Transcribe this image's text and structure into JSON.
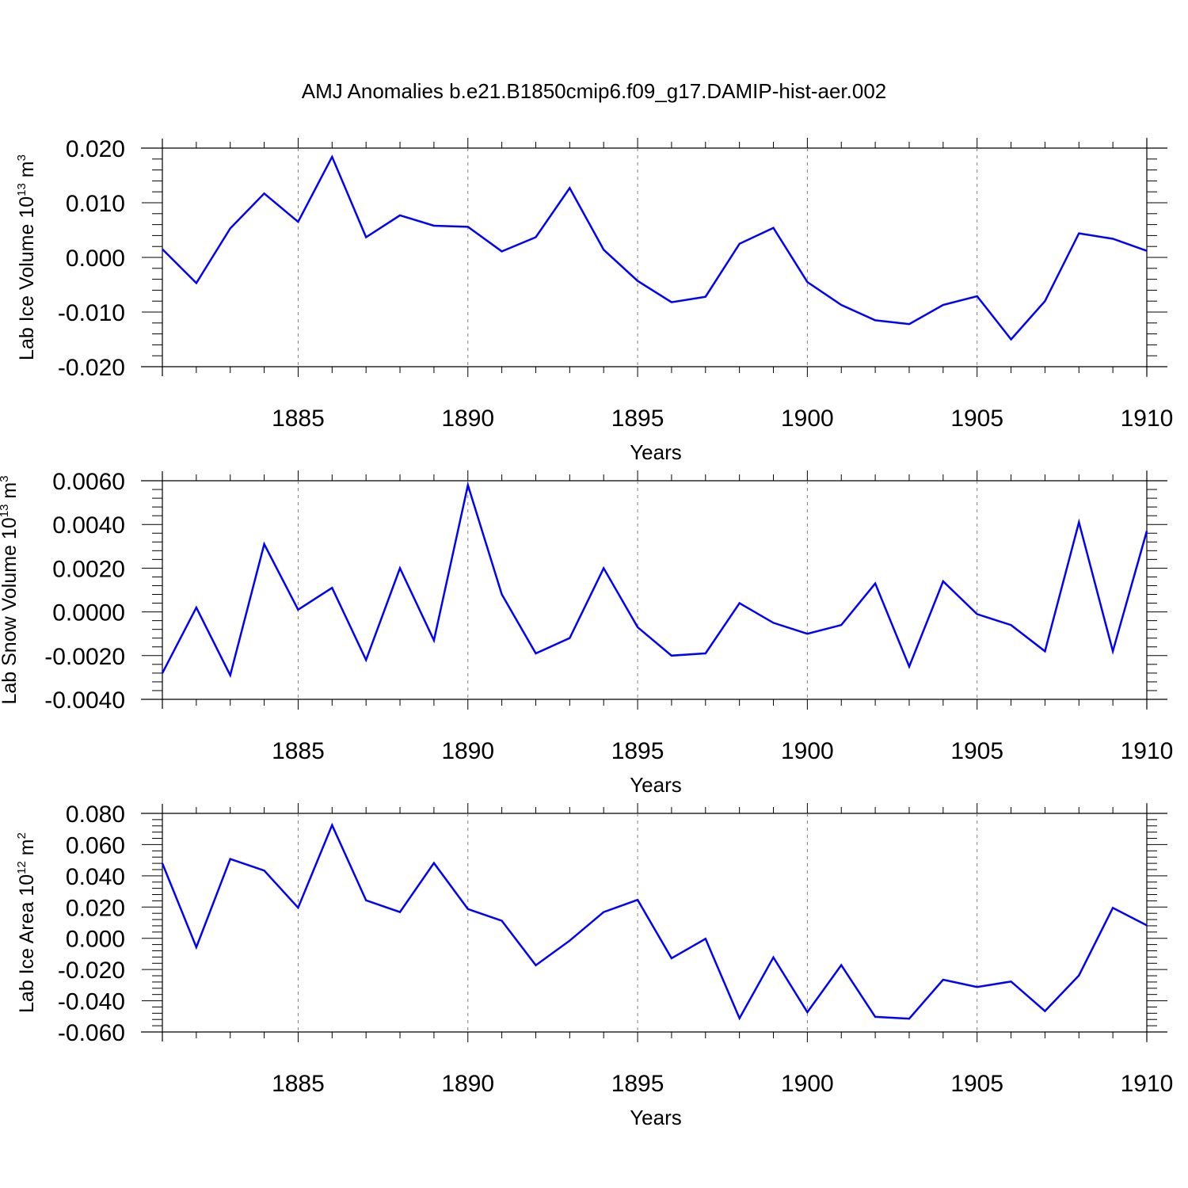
{
  "title": "AMJ Anomalies b.e21.B1850cmip6.f09_g17.DAMIP-hist-aer.002",
  "colors": {
    "line": "#0000ff",
    "axis": "#000000",
    "grid": "#7f7f7f"
  },
  "chart_data": [
    {
      "type": "line",
      "ylabel_main": "Lab Ice Volume 10",
      "ylabel_exp": "13",
      "ylabel_unit": "m",
      "ylabel_unit_exp": "3",
      "xlabel": "Years",
      "xlim": [
        1881,
        1910
      ],
      "ylim": [
        -0.02,
        0.02
      ],
      "yticks": [
        "0.020",
        "0.010",
        "0.000",
        "-0.010",
        "-0.020"
      ],
      "ytick_values": [
        0.02,
        0.01,
        0.0,
        -0.01,
        -0.02
      ],
      "xticks": [
        "1885",
        "1890",
        "1895",
        "1900",
        "1905",
        "1910"
      ],
      "xtick_values": [
        1885,
        1890,
        1895,
        1900,
        1905,
        1910
      ],
      "grid": "vertical dashed at major x ticks",
      "x": [
        1881,
        1882,
        1883,
        1884,
        1885,
        1886,
        1887,
        1888,
        1889,
        1890,
        1891,
        1892,
        1893,
        1894,
        1895,
        1896,
        1897,
        1898,
        1899,
        1900,
        1901,
        1902,
        1903,
        1904,
        1905,
        1906,
        1907,
        1908,
        1909,
        1910
      ],
      "series": [
        {
          "values": [
            0.0015,
            -0.0047,
            0.0053,
            0.0117,
            0.0065,
            0.0184,
            0.0037,
            0.0077,
            0.0058,
            0.0056,
            0.0011,
            0.0037,
            0.0127,
            0.0014,
            -0.0043,
            -0.0082,
            -0.0072,
            0.0025,
            0.0054,
            -0.0045,
            -0.0087,
            -0.0115,
            -0.0122,
            -0.0087,
            -0.0071,
            -0.015,
            -0.008,
            0.0044,
            0.0034,
            0.0012
          ]
        }
      ]
    },
    {
      "type": "line",
      "ylabel_main": "Lab Snow Volume 10",
      "ylabel_exp": "13",
      "ylabel_unit": "m",
      "ylabel_unit_exp": "3",
      "xlabel": "Years",
      "xlim": [
        1881,
        1910
      ],
      "ylim": [
        -0.004,
        0.006
      ],
      "yticks": [
        "0.0060",
        "0.0040",
        "0.0020",
        "0.0000",
        "-0.0020",
        "-0.0040"
      ],
      "ytick_values": [
        0.006,
        0.004,
        0.002,
        0.0,
        -0.002,
        -0.004
      ],
      "xticks": [
        "1885",
        "1890",
        "1895",
        "1900",
        "1905",
        "1910"
      ],
      "xtick_values": [
        1885,
        1890,
        1895,
        1900,
        1905,
        1910
      ],
      "grid": "vertical dashed at major x ticks",
      "x": [
        1881,
        1882,
        1883,
        1884,
        1885,
        1886,
        1887,
        1888,
        1889,
        1890,
        1891,
        1892,
        1893,
        1894,
        1895,
        1896,
        1897,
        1898,
        1899,
        1900,
        1901,
        1902,
        1903,
        1904,
        1905,
        1906,
        1907,
        1908,
        1909,
        1910
      ],
      "series": [
        {
          "values": [
            -0.0028,
            0.0002,
            -0.0029,
            0.0031,
            0.0001,
            0.0011,
            -0.0022,
            0.002,
            -0.0013,
            0.0058,
            0.0008,
            -0.0019,
            -0.0012,
            0.002,
            -0.0007,
            -0.002,
            -0.0019,
            0.0004,
            -0.0005,
            -0.001,
            -0.0006,
            0.0013,
            -0.0025,
            0.0014,
            -0.0001,
            -0.0006,
            -0.0018,
            0.0041,
            -0.0018,
            0.0037
          ]
        }
      ]
    },
    {
      "type": "line",
      "ylabel_main": "Lab Ice Area 10",
      "ylabel_exp": "12",
      "ylabel_unit": "m",
      "ylabel_unit_exp": "2",
      "xlabel": "Years",
      "xlim": [
        1881,
        1910
      ],
      "ylim": [
        -0.06,
        0.08
      ],
      "yticks": [
        "0.080",
        "0.060",
        "0.040",
        "0.020",
        "0.000",
        "-0.020",
        "-0.040",
        "-0.060"
      ],
      "ytick_values": [
        0.08,
        0.06,
        0.04,
        0.02,
        0.0,
        -0.02,
        -0.04,
        -0.06
      ],
      "xticks": [
        "1885",
        "1890",
        "1895",
        "1900",
        "1905",
        "1910"
      ],
      "xtick_values": [
        1885,
        1890,
        1895,
        1900,
        1905,
        1910
      ],
      "grid": "vertical dashed at major x ticks",
      "x": [
        1881,
        1882,
        1883,
        1884,
        1885,
        1886,
        1887,
        1888,
        1889,
        1890,
        1891,
        1892,
        1893,
        1894,
        1895,
        1896,
        1897,
        1898,
        1899,
        1900,
        1901,
        1902,
        1903,
        1904,
        1905,
        1906,
        1907,
        1908,
        1909,
        1910
      ],
      "series": [
        {
          "values": [
            0.048,
            -0.0057,
            0.0508,
            0.0434,
            0.0196,
            0.0725,
            0.0243,
            0.0168,
            0.0482,
            0.0187,
            0.0112,
            -0.0173,
            -0.0015,
            0.0168,
            0.0246,
            -0.0128,
            -0.0003,
            -0.0512,
            -0.0122,
            -0.0473,
            -0.0172,
            -0.0503,
            -0.0515,
            -0.0265,
            -0.0312,
            -0.0277,
            -0.0466,
            -0.0238,
            0.0195,
            0.0083
          ]
        }
      ]
    }
  ]
}
